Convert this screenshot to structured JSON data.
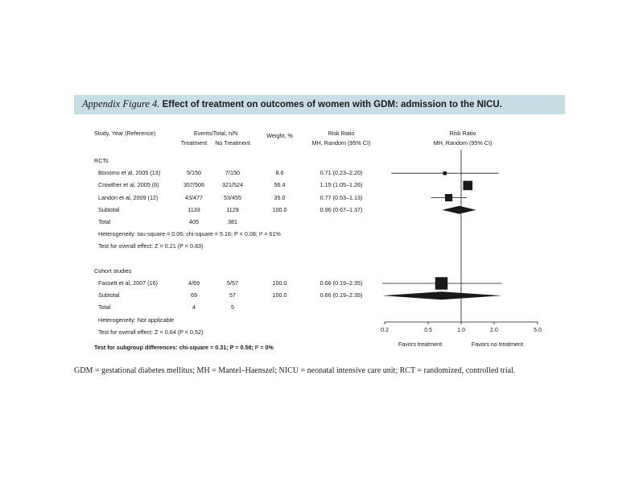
{
  "figure": {
    "title_lead": "Appendix Figure 4.",
    "title_rest": " Effect of treatment on outcomes of women with GDM: admission to the NICU."
  },
  "headers": {
    "study": "Study, Year (Reference)",
    "events_group": "Events/Total, n/N",
    "treatment": "Treatment",
    "no_treatment": "No Treatment",
    "weight": "Weight, %",
    "rr_col_line1": "Risk Ratio",
    "rr_col_line2": "MH, Random (95% CI)",
    "rr_plot_line1": "Risk Ratio",
    "rr_plot_line2": "MH, Random (95% CI)"
  },
  "rows": [
    {
      "label": "RCTs",
      "kind": "group"
    },
    {
      "label": "Bonomo et al, 2005 (13)",
      "treatment": "5/150",
      "no_treatment": "7/150",
      "weight": "8.6",
      "rr_text": "0.71 (0.23–2.20)",
      "kind": "study"
    },
    {
      "label": "Crowther et al, 2005 (6)",
      "treatment": "357/506",
      "no_treatment": "321/524",
      "weight": "56.4",
      "rr_text": "1.15 (1.05–1.26)",
      "kind": "study"
    },
    {
      "label": "Landon et al, 2009 (12)",
      "treatment": "43/477",
      "no_treatment": "53/455",
      "weight": "35.0",
      "rr_text": "0.77 (0.53–1.13)",
      "kind": "study"
    },
    {
      "label": "Subtotal",
      "treatment": "1133",
      "no_treatment": "1129",
      "weight": "100.0",
      "rr_text": "0.96 (0.67–1.37)",
      "kind": "subtotal"
    },
    {
      "label": "Total",
      "treatment": "405",
      "no_treatment": "381",
      "kind": "total"
    },
    {
      "label": "Heterogeneity: tau-square = 0.06; chi-square = 5.16; P = 0.08; I² = 61%",
      "kind": "note"
    },
    {
      "label": "Test for overall effect: Z = 0.21 (P = 0.83)",
      "kind": "note"
    },
    {
      "label": "",
      "kind": "spacer"
    },
    {
      "label": "Cohort studies",
      "kind": "group"
    },
    {
      "label": "Fassett et al, 2007 (16)",
      "treatment": "4/69",
      "no_treatment": "5/57",
      "weight": "100.0",
      "rr_text": "0.66 (0.19–2.35)",
      "kind": "study"
    },
    {
      "label": "Subtotal",
      "treatment": "69",
      "no_treatment": "57",
      "weight": "100.0",
      "rr_text": "0.66 (0.19–2.35)",
      "kind": "subtotal"
    },
    {
      "label": "Total",
      "treatment": "4",
      "no_treatment": "5",
      "kind": "total"
    },
    {
      "label": "Heterogeneity: Not applicable",
      "kind": "note"
    },
    {
      "label": "Test for overall effect: Z = 0.64 (P = 0.52)",
      "kind": "note"
    }
  ],
  "subgroup_test": "Test for subgroup differences: chi-square = 0.31; P = 0.58; I² = 0%",
  "favors_treatment": "Favors treatment",
  "favors_no_treatment": "Favors no treatment",
  "footnote": "GDM = gestational diabetes mellitus; MH = Mantel–Haenszel; NICU = neonatal intensive care unit; RCT = randomized, controlled trial.",
  "colors": {
    "title_bar": "#c9dde6",
    "ink": "#1a1a1a"
  },
  "chart_data": {
    "type": "forest",
    "x_scale": "log",
    "xlim": [
      0.2,
      5.0
    ],
    "x_ticks": [
      0.2,
      0.5,
      1.0,
      2.0,
      5.0
    ],
    "x_tick_labels": [
      "0.2",
      "0.5",
      "1.0",
      "2.0",
      "5.0"
    ],
    "reference_line": 1.0,
    "estimates": [
      {
        "row": 1,
        "rr": 0.71,
        "lo": 0.23,
        "hi": 2.2,
        "weight": 8.6,
        "shape": "square"
      },
      {
        "row": 2,
        "rr": 1.15,
        "lo": 1.05,
        "hi": 1.26,
        "weight": 56.4,
        "shape": "square"
      },
      {
        "row": 3,
        "rr": 0.77,
        "lo": 0.53,
        "hi": 1.13,
        "weight": 35.0,
        "shape": "square"
      },
      {
        "row": 4,
        "rr": 0.96,
        "lo": 0.67,
        "hi": 1.37,
        "shape": "diamond"
      },
      {
        "row": 10,
        "rr": 0.66,
        "lo": 0.19,
        "hi": 2.35,
        "weight": 100.0,
        "shape": "square"
      },
      {
        "row": 11,
        "rr": 0.66,
        "lo": 0.19,
        "hi": 2.35,
        "shape": "diamond"
      }
    ]
  }
}
